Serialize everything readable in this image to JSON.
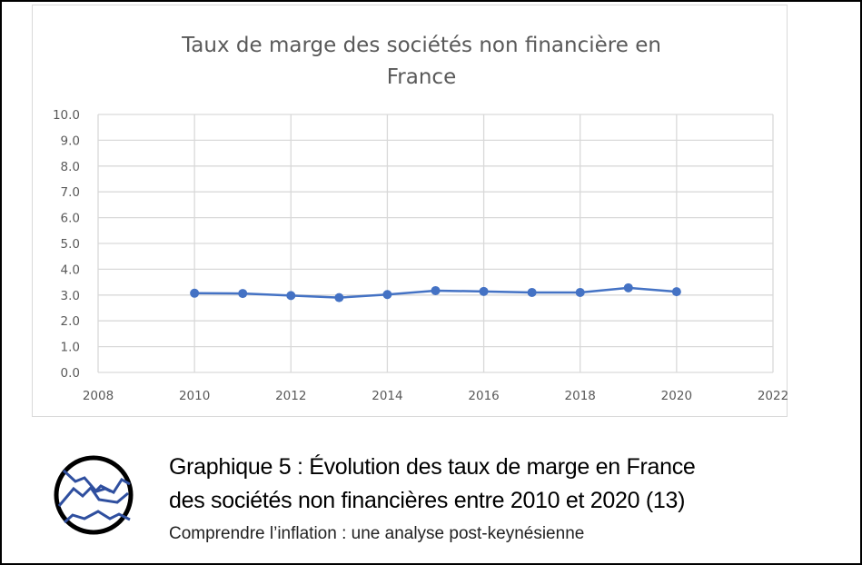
{
  "chart_data": {
    "type": "line",
    "title_lines": [
      "Taux de marge des sociétés non financière en",
      "France"
    ],
    "xlabel": "",
    "ylabel": "",
    "x": [
      2010,
      2011,
      2012,
      2013,
      2014,
      2015,
      2016,
      2017,
      2018,
      2019,
      2020
    ],
    "series": [
      {
        "name": "Taux de marge",
        "values": [
          3.07,
          3.06,
          2.98,
          2.9,
          3.02,
          3.17,
          3.14,
          3.1,
          3.1,
          3.28,
          3.13
        ]
      }
    ],
    "xlim": [
      2008,
      2022
    ],
    "ylim": [
      0,
      10
    ],
    "x_ticks": [
      "2008",
      "2010",
      "2012",
      "2014",
      "2016",
      "2018",
      "2020",
      "2022"
    ],
    "y_ticks": [
      "0.0",
      "1.0",
      "2.0",
      "3.0",
      "4.0",
      "5.0",
      "6.0",
      "7.0",
      "8.0",
      "9.0",
      "10.0"
    ],
    "grid": true,
    "legend": "none",
    "color": "#4472c4"
  },
  "caption": {
    "line1": "Graphique 5 : Évolution des taux de marge en France",
    "line2": "des sociétés non financières entre 2010 et 2020 (13)",
    "subtitle": "Comprendre l’inflation : une analyse post-keynésienne"
  }
}
